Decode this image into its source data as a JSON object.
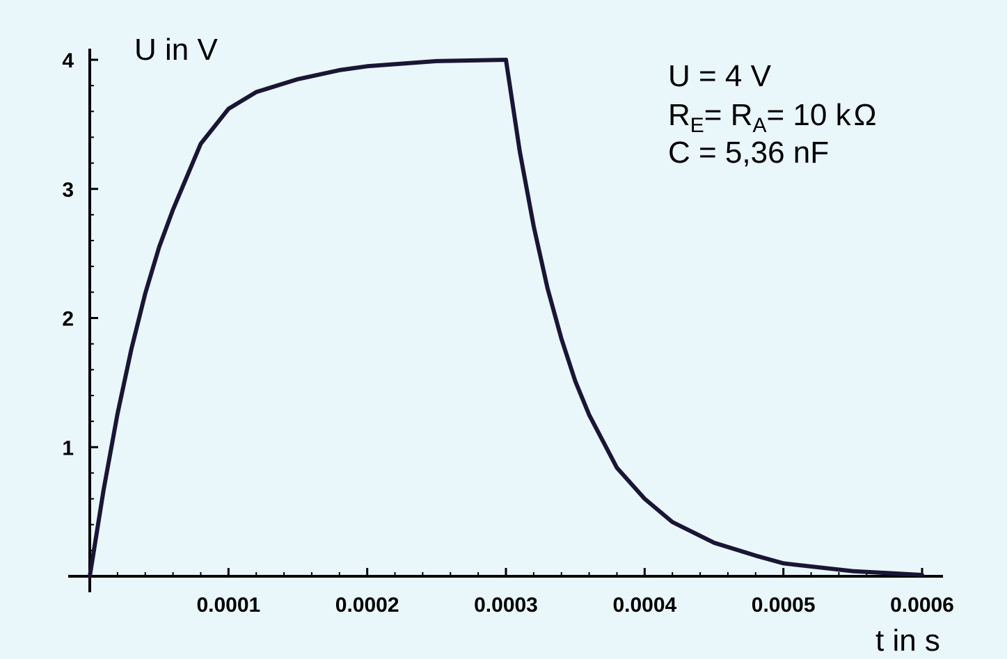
{
  "chart_data": {
    "type": "line",
    "title": "",
    "xlabel": "t in s",
    "ylabel": "U in V",
    "xlim": [
      0,
      0.0006
    ],
    "ylim": [
      0,
      4
    ],
    "x_ticks": [
      0.0001,
      0.0002,
      0.0003,
      0.0004,
      0.0005,
      0.0006
    ],
    "x_tick_labels": [
      "0.0001",
      "0.0002",
      "0.0003",
      "0.0004",
      "0.0005",
      "0.0006"
    ],
    "y_ticks": [
      1,
      2,
      3,
      4
    ],
    "y_tick_labels": [
      "1",
      "2",
      "3",
      "4"
    ],
    "grid": false,
    "curve_color": "#1a1535",
    "series": [
      {
        "x": [
          0,
          1e-05,
          2e-05,
          3e-05,
          4e-05,
          5e-05,
          6e-05,
          8e-05,
          0.0001,
          0.00012,
          0.00015,
          0.00018,
          0.0002,
          0.00025,
          0.0003,
          0.00031,
          0.00032,
          0.00033,
          0.00034,
          0.00035,
          0.00036,
          0.00038,
          0.0004,
          0.00042,
          0.00045,
          0.00048,
          0.0005,
          0.00055,
          0.0006
        ],
        "y": [
          0,
          0.67,
          1.26,
          1.76,
          2.19,
          2.55,
          2.84,
          3.35,
          3.62,
          3.75,
          3.85,
          3.92,
          3.95,
          3.99,
          4.0,
          3.29,
          2.71,
          2.23,
          1.84,
          1.51,
          1.25,
          0.84,
          0.6,
          0.42,
          0.26,
          0.16,
          0.1,
          0.04,
          0.01
        ]
      }
    ],
    "annotations": {
      "line1": "U = 4 V",
      "line2_r1": "R",
      "line2_r1_sub": "E",
      "line2_eq1": "= ",
      "line2_r2": "R",
      "line2_r2_sub": "A",
      "line2_rest": "= 10 k",
      "line2_unit": "Ω",
      "line3": "C = 5,36 nF"
    }
  }
}
